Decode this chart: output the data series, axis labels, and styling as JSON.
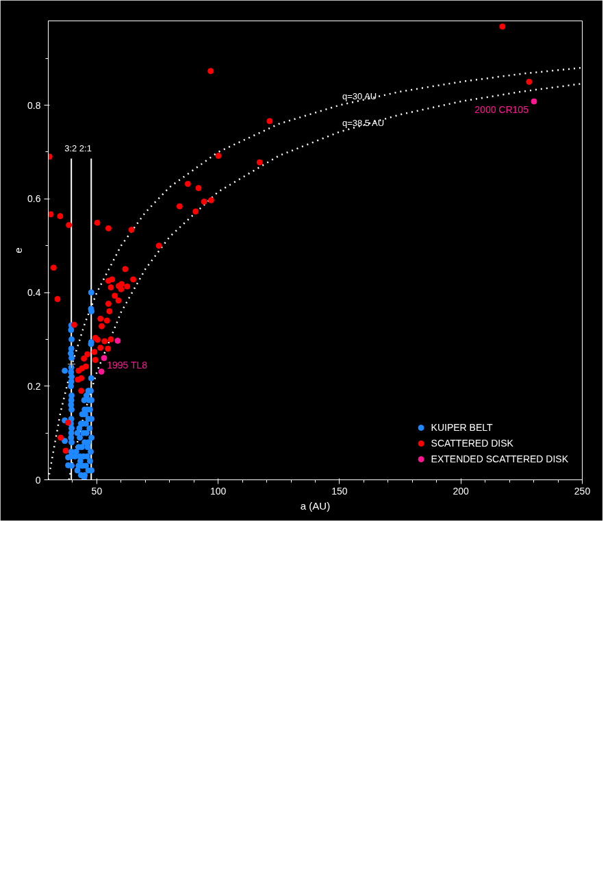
{
  "chart_data": {
    "type": "scatter",
    "xlabel": "a (AU)",
    "ylabel": "e",
    "xlim": [
      30,
      250
    ],
    "ylim": [
      0,
      0.98
    ],
    "xticks": [
      {
        "value": 40,
        "label": null
      },
      50,
      {
        "value": 60,
        "label": null
      },
      {
        "value": 70,
        "label": null
      },
      {
        "value": 80,
        "label": null
      },
      {
        "value": 90,
        "label": null
      },
      100,
      {
        "value": 110,
        "label": null
      },
      {
        "value": 120,
        "label": null
      },
      {
        "value": 130,
        "label": null
      },
      {
        "value": 140,
        "label": null
      },
      150,
      {
        "value": 160,
        "label": null
      },
      {
        "value": 170,
        "label": null
      },
      {
        "value": 180,
        "label": null
      },
      {
        "value": 190,
        "label": null
      },
      200,
      {
        "value": 210,
        "label": null
      },
      {
        "value": 220,
        "label": null
      },
      {
        "value": 230,
        "label": null
      },
      {
        "value": 240,
        "label": null
      },
      250
    ],
    "yticks": [
      0,
      {
        "value": 0.1,
        "label": null
      },
      0.2,
      {
        "value": 0.3,
        "label": null
      },
      0.4,
      {
        "value": 0.5,
        "label": null
      },
      0.6,
      {
        "value": 0.7,
        "label": null
      },
      0.8,
      {
        "value": 0.9,
        "label": null
      }
    ],
    "legend": "bottom right",
    "ref_lines": [
      {
        "axis": "x",
        "value": 39.5,
        "color": "#ffffff"
      },
      {
        "axis": "x",
        "value": 47.7,
        "color": "#ffffff"
      }
    ],
    "annotations": [
      "3:2 2:1",
      {
        "text": "2000 CR105",
        "x": 230.1,
        "y": 0.808
      },
      {
        "text": "1995 TL8",
        "x": 51.9,
        "y": 0.231
      }
    ],
    "series": [
      {
        "type": "line",
        "name": "q=30 AU",
        "color": "#ffffff",
        "line_style": "dotted",
        "x": [
          30,
          35,
          40,
          45,
          50,
          60,
          70,
          80,
          100,
          125,
          150,
          175,
          200,
          225,
          250
        ],
        "values": [
          0,
          0.143,
          0.25,
          0.333,
          0.4,
          0.5,
          0.571,
          0.625,
          0.7,
          0.76,
          0.8,
          0.829,
          0.85,
          0.867,
          0.88
        ]
      },
      {
        "type": "line",
        "name": "q=38.5 AU",
        "color": "#ffffff",
        "line_style": "dotted",
        "x": [
          38.5,
          40,
          45,
          50,
          60,
          70,
          80,
          100,
          125,
          150,
          175,
          200,
          225,
          250
        ],
        "values": [
          0,
          0.038,
          0.144,
          0.23,
          0.358,
          0.45,
          0.519,
          0.615,
          0.692,
          0.743,
          0.78,
          0.808,
          0.829,
          0.846
        ]
      },
      {
        "name": "KUIPER BELT",
        "color": "#1e88ff",
        "marker": "circle",
        "x": [
          39.5,
          39.4,
          39.6,
          39.5,
          39.3,
          39.6,
          39.5,
          39.4,
          39.6,
          39.5,
          39.3,
          39.6,
          39.5,
          39.4,
          39.6,
          39.5,
          39.3,
          39.6,
          39.5,
          39.4,
          39.6,
          39.5,
          39.4,
          39.6,
          47.7,
          47.6,
          47.8,
          47.7,
          47.6,
          47.7,
          36.8,
          36.8,
          36.8,
          38.2,
          38.2,
          47.5,
          46.5,
          45.8,
          47.8,
          46.8,
          44.8,
          47.2,
          46.2,
          45,
          44,
          47.8,
          46.5,
          45.5,
          43.5,
          42.8,
          47,
          45.8,
          44.5,
          43,
          42,
          47.8,
          46.5,
          45,
          43.8,
          42.5,
          41.5,
          47.5,
          46,
          44.5,
          43,
          41,
          47.2,
          45.5,
          44,
          42.5,
          47.8,
          46.5,
          45,
          43.5,
          42,
          44.8,
          46.2,
          44.2,
          45.2,
          43.2
        ],
        "values": [
          0.33,
          0.32,
          0.3,
          0.28,
          0.27,
          0.26,
          0.24,
          0.23,
          0.22,
          0.21,
          0.2,
          0.18,
          0.17,
          0.16,
          0.15,
          0.13,
          0.12,
          0.11,
          0.1,
          0.09,
          0.08,
          0.06,
          0.05,
          0.03,
          0.4,
          0.365,
          0.36,
          0.294,
          0.29,
          0.217,
          0.233,
          0.127,
          0.083,
          0.048,
          0.031,
          0.19,
          0.19,
          0.18,
          0.17,
          0.17,
          0.17,
          0.15,
          0.15,
          0.15,
          0.14,
          0.13,
          0.13,
          0.12,
          0.12,
          0.11,
          0.11,
          0.1,
          0.1,
          0.09,
          0.1,
          0.09,
          0.08,
          0.08,
          0.07,
          0.07,
          0.06,
          0.06,
          0.05,
          0.05,
          0.05,
          0.05,
          0.04,
          0.03,
          0.03,
          0.03,
          0.02,
          0.02,
          0.01,
          0.01,
          0.02,
          0.005,
          0.07,
          0.12,
          0.14,
          0.04
        ]
      },
      {
        "name": "SCATTERED DISK",
        "color": "#ff0000",
        "marker": "circle",
        "x": [
          30.5,
          31,
          34.9,
          38.5,
          50.2,
          54.8,
          32.2,
          33.8,
          64.3,
          65,
          61.7,
          62.5,
          60.2,
          60,
          59,
          58.9,
          57.4,
          56.3,
          55.8,
          54.8,
          54.8,
          55.2,
          54.2,
          51.5,
          52,
          55.8,
          53.2,
          54.6,
          51.5,
          49.4,
          50.3,
          49,
          49.4,
          46.1,
          44.7,
          45.5,
          43.9,
          43.6,
          42.2,
          42.5,
          43.6,
          40.7,
          38.2,
          35.1,
          37.2,
          121.2,
          117.1,
          96.9,
          100.1,
          97.1,
          94.2,
          91.9,
          90.7,
          87.5,
          84.1,
          75.6,
          228.1,
          217.1
        ],
        "values": [
          0.69,
          0.567,
          0.563,
          0.544,
          0.549,
          0.537,
          0.453,
          0.386,
          0.534,
          0.428,
          0.45,
          0.413,
          0.418,
          0.407,
          0.414,
          0.383,
          0.393,
          0.428,
          0.411,
          0.425,
          0.376,
          0.36,
          0.34,
          0.344,
          0.328,
          0.3,
          0.296,
          0.28,
          0.282,
          0.303,
          0.299,
          0.273,
          0.256,
          0.268,
          0.259,
          0.242,
          0.238,
          0.217,
          0.214,
          0.233,
          0.19,
          0.331,
          0.122,
          0.09,
          0.062,
          0.766,
          0.678,
          0.873,
          0.692,
          0.597,
          0.594,
          0.623,
          0.573,
          0.632,
          0.584,
          0.5,
          0.85,
          0.968
        ]
      },
      {
        "name": "EXTENDED SCATTERED DISK",
        "color": "#ff1493",
        "marker": "circle",
        "x": [
          230.1,
          58.6,
          53,
          51.9
        ],
        "values": [
          0.808,
          0.297,
          0.26,
          0.231
        ]
      },
      {
        "color": "#c8c8c8",
        "marker": "cross",
        "x": [
          39.6
        ],
        "values": [
          0.247
        ]
      }
    ]
  }
}
